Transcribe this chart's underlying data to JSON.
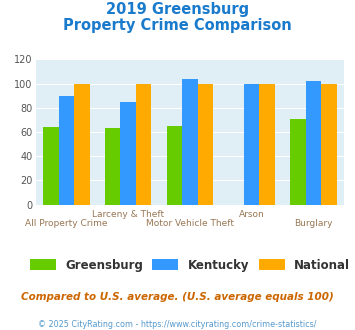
{
  "title_line1": "2019 Greensburg",
  "title_line2": "Property Crime Comparison",
  "groups": [
    {
      "name": "Greensburg",
      "color": "#66cc00",
      "values": [
        64,
        63,
        65,
        0,
        71
      ]
    },
    {
      "name": "Kentucky",
      "color": "#3399ff",
      "values": [
        90,
        85,
        104,
        100,
        102
      ]
    },
    {
      "name": "National",
      "color": "#ffaa00",
      "values": [
        100,
        100,
        100,
        100,
        100
      ]
    }
  ],
  "n_groups": 5,
  "ylim": [
    0,
    120
  ],
  "yticks": [
    0,
    20,
    40,
    60,
    80,
    100,
    120
  ],
  "top_labels": [
    "",
    "Larceny & Theft",
    "",
    "Arson",
    ""
  ],
  "bottom_labels": [
    "All Property Crime",
    "",
    "Motor Vehicle Theft",
    "",
    "Burglary"
  ],
  "footnote1": "Compared to U.S. average. (U.S. average equals 100)",
  "footnote2": "© 2025 CityRating.com - https://www.cityrating.com/crime-statistics/",
  "bg_color": "#e0eef5",
  "title_color": "#1a7acc",
  "footnote1_color": "#cc6600",
  "footnote2_color": "#5599cc",
  "x_label_color": "#997755"
}
